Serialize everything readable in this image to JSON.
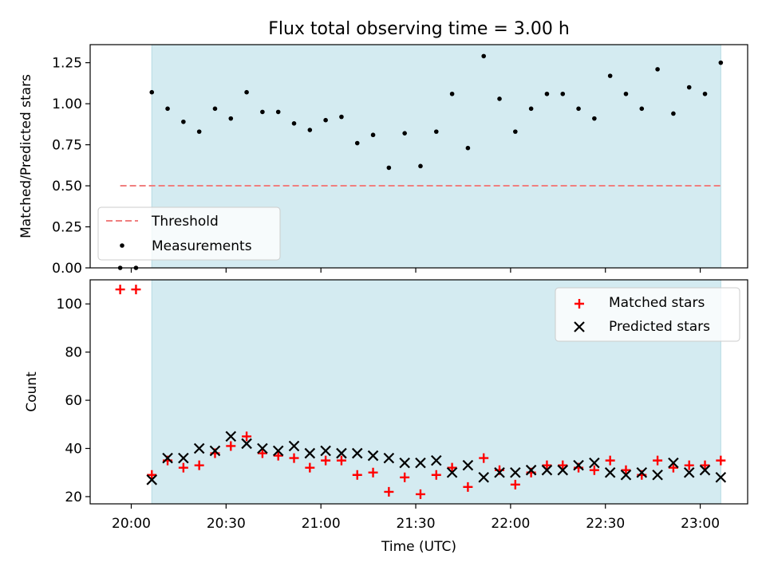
{
  "figure": {
    "title": "Flux total observing time = 3.00 h",
    "xlabel": "Time (UTC)",
    "x_tick_labels": [
      "20:00",
      "20:30",
      "21:00",
      "21:30",
      "22:00",
      "22:30",
      "23:00"
    ],
    "shade_color": "#d4ebf1",
    "threshold_color": "#f07f7f",
    "matched_color": "#ff0000",
    "predicted_color": "#000000"
  },
  "chart_data": [
    {
      "type": "scatter",
      "panel": "top",
      "ylabel": "Matched/Predicted stars",
      "xlim": [
        1187,
        1395
      ],
      "ylim": [
        0,
        1.36
      ],
      "y_ticks": [
        0,
        0.25,
        0.5,
        0.75,
        1.0,
        1.25
      ],
      "y_tick_labels": [
        "0.00",
        "0.25",
        "0.50",
        "0.75",
        "1.00",
        "1.25"
      ],
      "shaded_span": [
        1206.5,
        1386.5
      ],
      "threshold": {
        "name": "Threshold",
        "value": 0.5,
        "x": [
          1196.5,
          1386.5
        ]
      },
      "legend": {
        "position": "lower-left",
        "entries": [
          "Threshold",
          "Measurements"
        ]
      },
      "series": [
        {
          "name": "Measurements",
          "x": [
            1196.5,
            1201.5,
            1206.5,
            1211.5,
            1216.5,
            1221.5,
            1226.5,
            1231.5,
            1236.5,
            1241.5,
            1246.5,
            1251.5,
            1256.5,
            1261.5,
            1266.5,
            1271.5,
            1276.5,
            1281.5,
            1286.5,
            1291.5,
            1296.5,
            1301.5,
            1306.5,
            1311.5,
            1316.5,
            1321.5,
            1326.5,
            1331.5,
            1336.5,
            1341.5,
            1346.5,
            1351.5,
            1356.5,
            1361.5,
            1366.5,
            1371.5,
            1376.5,
            1381.5,
            1386.5
          ],
          "values": [
            0.0,
            0.0,
            1.07,
            0.97,
            0.89,
            0.83,
            0.97,
            0.91,
            1.07,
            0.95,
            0.95,
            0.88,
            0.84,
            0.9,
            0.92,
            0.76,
            0.81,
            0.61,
            0.82,
            0.62,
            0.83,
            1.06,
            0.73,
            1.29,
            1.03,
            0.83,
            0.97,
            1.06,
            1.06,
            0.97,
            0.91,
            1.17,
            1.06,
            0.97,
            1.21,
            0.94,
            1.1,
            1.06,
            1.25
          ]
        }
      ]
    },
    {
      "type": "scatter",
      "panel": "bottom",
      "ylabel": "Count",
      "xlim": [
        1187,
        1395
      ],
      "ylim": [
        17,
        110
      ],
      "y_ticks": [
        20,
        40,
        60,
        80,
        100
      ],
      "y_tick_labels": [
        "20",
        "40",
        "60",
        "80",
        "100"
      ],
      "shaded_span": [
        1206.5,
        1386.5
      ],
      "legend": {
        "position": "upper-right",
        "entries": [
          "Matched stars",
          "Predicted stars"
        ]
      },
      "series": [
        {
          "name": "Matched stars",
          "marker": "plus",
          "x": [
            1196.5,
            1201.5,
            1206.5,
            1211.5,
            1216.5,
            1221.5,
            1226.5,
            1231.5,
            1236.5,
            1241.5,
            1246.5,
            1251.5,
            1256.5,
            1261.5,
            1266.5,
            1271.5,
            1276.5,
            1281.5,
            1286.5,
            1291.5,
            1296.5,
            1301.5,
            1306.5,
            1311.5,
            1316.5,
            1321.5,
            1326.5,
            1331.5,
            1336.5,
            1341.5,
            1346.5,
            1351.5,
            1356.5,
            1361.5,
            1366.5,
            1371.5,
            1376.5,
            1381.5,
            1386.5
          ],
          "values": [
            106,
            106,
            29,
            35,
            32,
            33,
            38,
            41,
            45,
            38,
            37,
            36,
            32,
            35,
            35,
            29,
            30,
            22,
            28,
            21,
            29,
            32,
            24,
            36,
            31,
            25,
            30,
            33,
            33,
            32,
            31,
            35,
            31,
            29,
            35,
            32,
            33,
            33,
            35
          ]
        },
        {
          "name": "Predicted stars",
          "marker": "x",
          "x": [
            1206.5,
            1211.5,
            1216.5,
            1221.5,
            1226.5,
            1231.5,
            1236.5,
            1241.5,
            1246.5,
            1251.5,
            1256.5,
            1261.5,
            1266.5,
            1271.5,
            1276.5,
            1281.5,
            1286.5,
            1291.5,
            1296.5,
            1301.5,
            1306.5,
            1311.5,
            1316.5,
            1321.5,
            1326.5,
            1331.5,
            1336.5,
            1341.5,
            1346.5,
            1351.5,
            1356.5,
            1361.5,
            1366.5,
            1371.5,
            1376.5,
            1381.5,
            1386.5
          ],
          "values": [
            27,
            36,
            36,
            40,
            39,
            45,
            42,
            40,
            39,
            41,
            38,
            39,
            38,
            38,
            37,
            36,
            34,
            34,
            35,
            30,
            33,
            28,
            30,
            30,
            31,
            31,
            31,
            33,
            34,
            30,
            29,
            30,
            29,
            34,
            30,
            31,
            28
          ]
        }
      ]
    }
  ]
}
